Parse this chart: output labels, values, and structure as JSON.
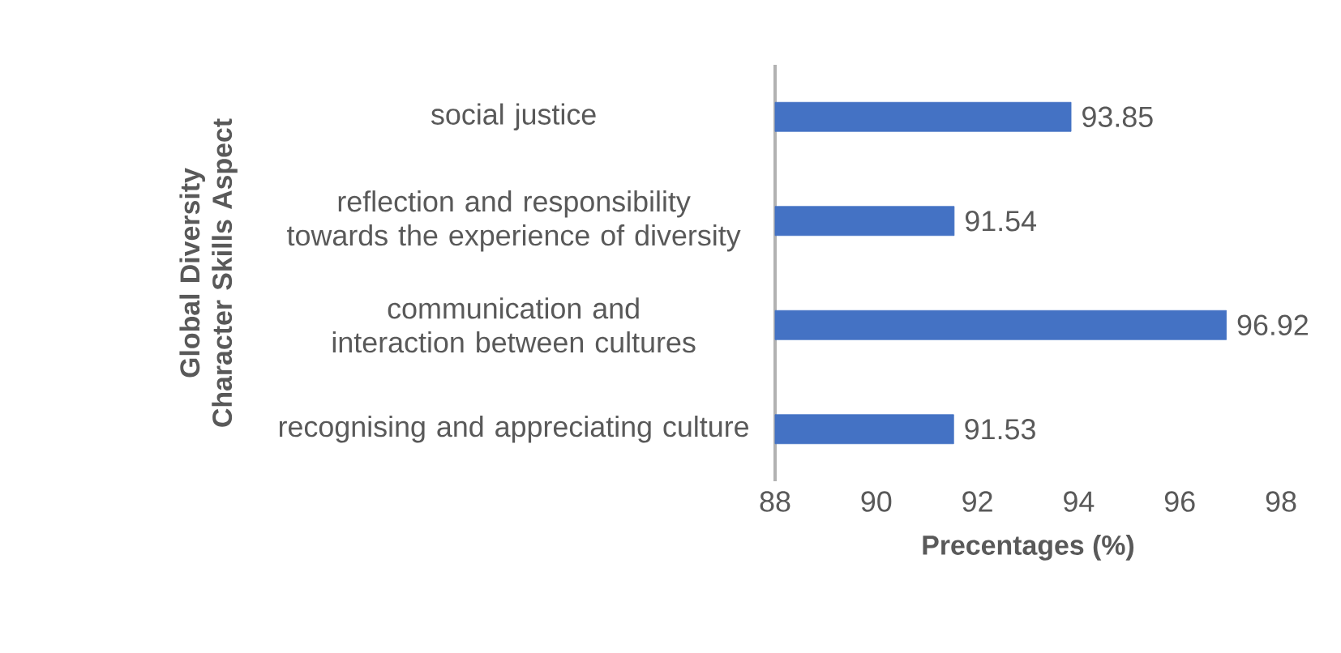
{
  "chart_data": {
    "type": "bar",
    "orientation": "horizontal",
    "xlabel": "Precentages (%)",
    "ylabel": "Global Diversity Character Skills Aspect",
    "categories": [
      "social justice",
      "reflection and responsibility towards the experience of diversity",
      "communication and interaction between cultures",
      "recognising and appreciating culture"
    ],
    "values": [
      93.85,
      91.54,
      96.92,
      91.53
    ],
    "color": "#4472c4",
    "data_labels": true,
    "xlim": [
      88,
      98
    ],
    "xticks": [
      88,
      90,
      92,
      94,
      96,
      98
    ],
    "grid": false
  }
}
